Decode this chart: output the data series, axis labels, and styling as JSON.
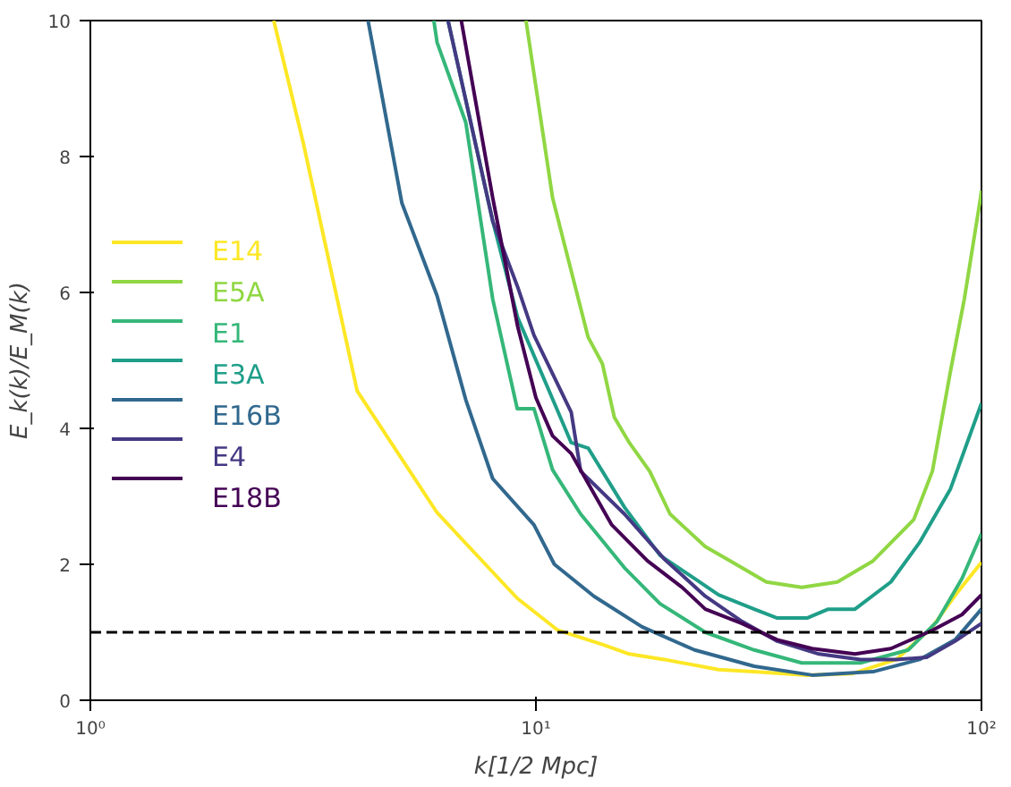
{
  "chart_data": {
    "type": "line",
    "xlabel": "k[1/2 Mpc]",
    "ylabel": "E_k(k)/E_M(k)",
    "log": "x",
    "xlim": [
      1,
      100
    ],
    "xticks": [
      {
        "value": 1,
        "label": "10⁰"
      },
      {
        "value": 10,
        "label": "10¹"
      },
      {
        "value": 100,
        "label": "10²"
      }
    ],
    "ylim": [
      0,
      10
    ],
    "yticks": [
      0,
      2,
      4,
      6,
      8,
      10
    ],
    "grid": false,
    "legend": "left",
    "line_style": "solid",
    "marker": "none",
    "ref_lines": [
      {
        "axis": "y",
        "value": 1,
        "label": null,
        "color": "#000000",
        "line_style": "dashed"
      }
    ],
    "series": [
      {
        "name": "E14",
        "color": "#fde725",
        "x": [
          2.58,
          3.01,
          3.97,
          6.0,
          9.08,
          11.2,
          14.1,
          16.2,
          19.4,
          25.7,
          30.8,
          40.6,
          51.2,
          64.4,
          77.6,
          88.6,
          100
        ],
        "values": [
          10,
          8.18,
          4.55,
          2.76,
          1.5,
          1.03,
          0.82,
          0.68,
          0.6,
          0.45,
          0.42,
          0.37,
          0.39,
          0.6,
          1.08,
          1.6,
          2.03
        ]
      },
      {
        "name": "E5A",
        "color": "#90d743",
        "x": [
          9.5,
          10.9,
          13.1,
          14.1,
          15.0,
          16.2,
          18.0,
          20.0,
          24.0,
          27.3,
          32.9,
          39.5,
          47.5,
          57.1,
          70.5,
          77.6,
          85.2,
          91.5,
          99.5,
          100
        ],
        "values": [
          10,
          7.39,
          5.34,
          4.95,
          4.16,
          3.79,
          3.37,
          2.74,
          2.26,
          2.05,
          1.74,
          1.66,
          1.74,
          2.05,
          2.66,
          3.37,
          4.84,
          5.9,
          7.39,
          7.5
        ]
      },
      {
        "name": "E1",
        "color": "#35b779",
        "x": [
          5.9,
          6.0,
          6.96,
          8.0,
          9.08,
          9.9,
          10.9,
          12.6,
          15.8,
          19.0,
          24.0,
          30.9,
          39.5,
          53.5,
          68.5,
          79.5,
          90.4,
          100
        ],
        "values": [
          10,
          9.68,
          8.5,
          5.9,
          4.29,
          4.29,
          3.39,
          2.74,
          1.95,
          1.42,
          1.0,
          0.74,
          0.55,
          0.55,
          0.74,
          1.16,
          1.79,
          2.45
        ]
      },
      {
        "name": "E3A",
        "color": "#1f9e89",
        "x": [
          6.35,
          8.0,
          9.1,
          10.5,
          12.0,
          13.1,
          15.8,
          19.0,
          22.7,
          25.7,
          30.9,
          34.8,
          40.6,
          45.3,
          52.0,
          62.6,
          72.6,
          85.2,
          100
        ],
        "values": [
          10,
          7.05,
          5.63,
          4.68,
          3.79,
          3.71,
          2.84,
          2.13,
          1.79,
          1.55,
          1.34,
          1.21,
          1.21,
          1.34,
          1.34,
          1.74,
          2.32,
          3.11,
          4.37
        ]
      },
      {
        "name": "E16B",
        "color": "#31688e",
        "x": [
          4.2,
          5.0,
          6.0,
          6.96,
          8.0,
          9.9,
          11.0,
          13.5,
          17.3,
          22.7,
          30.9,
          41.7,
          57.1,
          72.6,
          87.3,
          100
        ],
        "values": [
          10,
          7.32,
          5.95,
          4.42,
          3.26,
          2.58,
          2.0,
          1.53,
          1.08,
          0.74,
          0.5,
          0.37,
          0.42,
          0.6,
          0.89,
          1.34
        ]
      },
      {
        "name": "E4",
        "color": "#443983",
        "x": [
          6.35,
          8.0,
          9.1,
          9.9,
          12.0,
          12.6,
          15.8,
          19.4,
          24.0,
          29.0,
          34.8,
          43.2,
          53.5,
          64.4,
          75.3,
          87.3,
          100
        ],
        "values": [
          10,
          7.05,
          6.08,
          5.37,
          4.24,
          3.37,
          2.74,
          2.08,
          1.53,
          1.16,
          0.87,
          0.68,
          0.6,
          0.6,
          0.63,
          0.87,
          1.13
        ]
      },
      {
        "name": "E18B",
        "color": "#440154",
        "x": [
          6.8,
          8.0,
          9.1,
          10.0,
          10.9,
          12.0,
          14.8,
          17.8,
          21.3,
          24.0,
          29.0,
          34.8,
          41.7,
          52.0,
          62.6,
          77.6,
          90.4,
          100
        ],
        "values": [
          10,
          7.39,
          5.5,
          4.45,
          3.89,
          3.63,
          2.58,
          2.05,
          1.66,
          1.34,
          1.13,
          0.89,
          0.76,
          0.68,
          0.76,
          1.03,
          1.26,
          1.55
        ]
      }
    ]
  }
}
